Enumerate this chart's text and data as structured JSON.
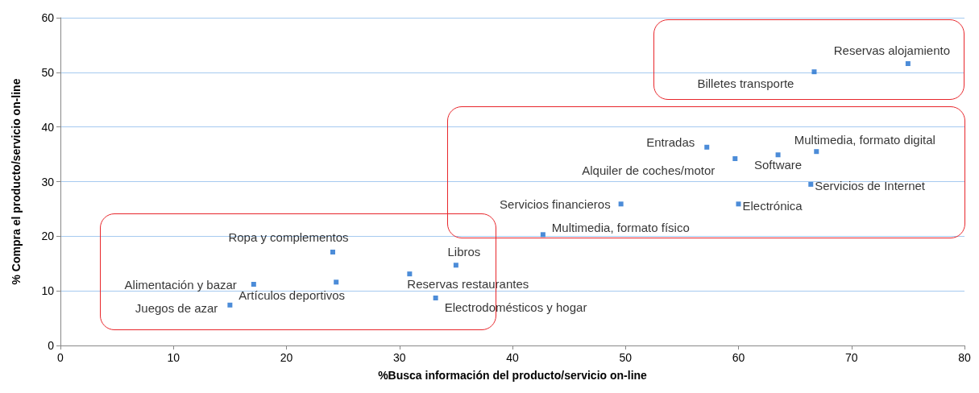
{
  "chart_data": {
    "type": "scatter",
    "xlabel": "%Busca información del producto/servicio on-line",
    "ylabel": "% Compra el producto/servicio on-line",
    "x": [
      15,
      17.1,
      24.1,
      24.4,
      30.9,
      35,
      33.2,
      42.7,
      49.6,
      60,
      57.2,
      59.7,
      63.5,
      66.9,
      66.4,
      66.7,
      75
    ],
    "values": [
      7.4,
      11.2,
      17.1,
      11.6,
      13.1,
      14.7,
      8.7,
      20.3,
      25.9,
      25.9,
      36.3,
      34.2,
      34.9,
      35.5,
      29.5,
      50.1,
      51.6
    ],
    "color": "#1f6fce",
    "marker": "square",
    "grid": "y",
    "xlim": [
      0,
      80
    ],
    "xticks": [
      0,
      10,
      20,
      30,
      40,
      50,
      60,
      70,
      80
    ],
    "ylim": [
      0,
      60
    ],
    "yticks": [
      0,
      10,
      20,
      30,
      40,
      50,
      60
    ],
    "annotations": [
      {
        "text": "Juegos de azar",
        "x": 15,
        "y": 7.4
      },
      {
        "text": "Alimentación y bazar",
        "x": 17.1,
        "y": 11.2
      },
      {
        "text": "Ropa y complementos",
        "x": 24.1,
        "y": 17.1
      },
      {
        "text": "Artículos deportivos",
        "x": 24.4,
        "y": 11.6
      },
      {
        "text": "Reservas restaurantes",
        "x": 30.9,
        "y": 13.1
      },
      {
        "text": "Libros",
        "x": 35,
        "y": 14.7
      },
      {
        "text": "Electrodomésticos y hogar",
        "x": 33.2,
        "y": 8.7
      },
      {
        "text": "Multimedia, formato físico",
        "x": 42.7,
        "y": 20.3
      },
      {
        "text": "Servicios financieros",
        "x": 49.6,
        "y": 25.9
      },
      {
        "text": "Electrónica",
        "x": 60,
        "y": 25.9
      },
      {
        "text": "Entradas",
        "x": 57.2,
        "y": 36.3
      },
      {
        "text": "Alquiler de coches/motor",
        "x": 59.7,
        "y": 34.2
      },
      {
        "text": "Software",
        "x": 63.5,
        "y": 34.9
      },
      {
        "text": "Multimedia, formato digital",
        "x": 66.9,
        "y": 35.5
      },
      {
        "text": "Servicios de Internet",
        "x": 66.4,
        "y": 29.5
      },
      {
        "text": "Billetes transporte",
        "x": 66.7,
        "y": 50.1
      },
      {
        "text": "Reservas alojamiento",
        "x": 75,
        "y": 51.6
      }
    ]
  }
}
